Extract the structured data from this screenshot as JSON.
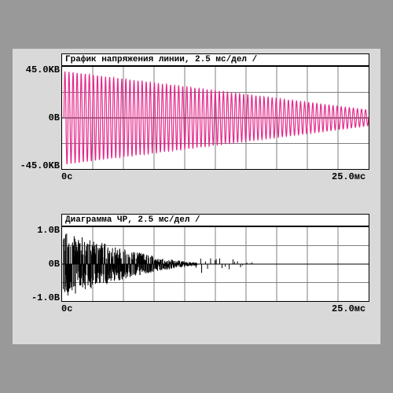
{
  "panel": {
    "background": "#d9d9d9",
    "outer_background": "#999999"
  },
  "chart1": {
    "type": "line",
    "title": "График напряжения линии, 2.5 мс/дел    /",
    "title_fontsize": 11,
    "y_labels": {
      "top": "45.0KB",
      "mid": "0B",
      "bot": "-45.0KB"
    },
    "x_labels": {
      "left": "0c",
      "right": "25.0мс"
    },
    "axis_label_fontsize": 12,
    "background": "#ffffff",
    "grid_color": "#808080",
    "border_color": "#000000",
    "series_color": "#e4288b",
    "line_width": 1.2,
    "xlim": [
      0,
      25.0
    ],
    "ylim": [
      -46,
      46
    ],
    "x_divisions": 10,
    "y_divisions": 4,
    "wave": {
      "start_amplitude": 42,
      "end_amplitude": 7,
      "cycles": 75,
      "start_x": 0.15,
      "end_x": 25.0
    }
  },
  "chart2": {
    "type": "line",
    "title": "Диаграмма ЧР, 2.5 мс/дел    /",
    "title_fontsize": 11,
    "y_labels": {
      "top": "1.0B",
      "mid": "0B",
      "bot": "-1.0B"
    },
    "x_labels": {
      "left": "0c",
      "right": "25.0мс"
    },
    "axis_label_fontsize": 12,
    "background": "#ffffff",
    "grid_color": "#808080",
    "border_color": "#000000",
    "series_color": "#000000",
    "line_width": 1.0,
    "xlim": [
      0,
      25.0
    ],
    "ylim": [
      -1.1,
      1.1
    ],
    "x_divisions": 10,
    "y_divisions": 4,
    "bursts": {
      "count": 520,
      "span_x": [
        0.1,
        11.0
      ],
      "sparse_span_x": [
        11.0,
        15.5
      ],
      "start_amplitude": 0.95,
      "end_amplitude": 0.05
    }
  }
}
